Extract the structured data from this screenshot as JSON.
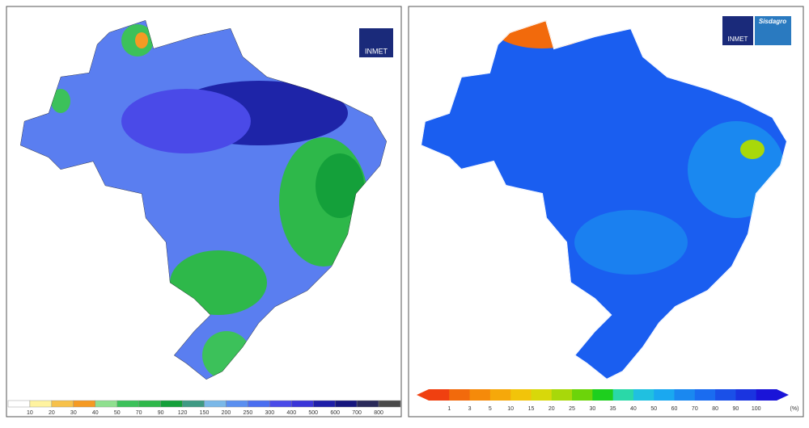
{
  "left_map": {
    "logo": "INMET",
    "legend": {
      "colors": [
        "#ffffff",
        "#fff3a0",
        "#f7c14a",
        "#f59a23",
        "#8fe08f",
        "#3cc15a",
        "#2eb84a",
        "#14a03a",
        "#3f9a84",
        "#7ab8e8",
        "#5a8ff0",
        "#4a6ef0",
        "#4a4ae8",
        "#3a35d8",
        "#1e1ea8",
        "#16167e",
        "#2a2a5a",
        "#4a4a4a"
      ],
      "labels": [
        10,
        20,
        30,
        40,
        50,
        70,
        90,
        120,
        150,
        200,
        250,
        300,
        400,
        500,
        600,
        700,
        800
      ]
    }
  },
  "right_map": {
    "logo": "INMET",
    "brand": "Sisdagro",
    "legend": {
      "colors": [
        "#f04010",
        "#f26a0c",
        "#f58a0a",
        "#f6a80a",
        "#f2c40a",
        "#d8d80a",
        "#a8d80a",
        "#6cd40a",
        "#1ecf1e",
        "#2ad8a8",
        "#20c0e0",
        "#1aa8f0",
        "#1a88f0",
        "#1a6cf0",
        "#1a50e8",
        "#1a34e0",
        "#1a14d8"
      ],
      "labels": [
        1,
        3,
        5,
        10,
        15,
        20,
        25,
        30,
        35,
        40,
        50,
        60,
        70,
        80,
        90,
        100
      ],
      "unit": "(%)"
    }
  }
}
